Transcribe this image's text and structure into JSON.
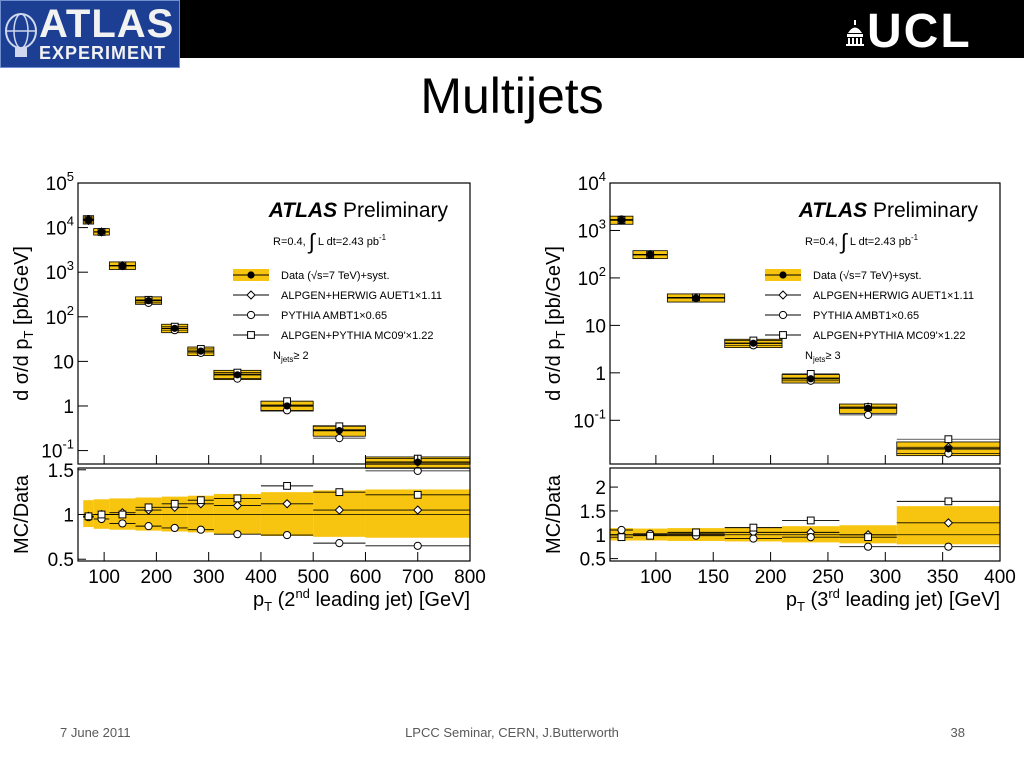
{
  "slide": {
    "title": "Multijets",
    "footer_date": "7 June 2011",
    "footer_center": "LPCC Seminar, CERN, J.Butterworth",
    "page_number": "38"
  },
  "logos": {
    "atlas": {
      "line1": "ATLAS",
      "line2": "EXPERIMENT"
    },
    "ucl": "UCL"
  },
  "colors": {
    "band": "#f7c510",
    "bandEdge": "#e0a800",
    "ink": "#000000"
  },
  "chart_data": [
    {
      "type": "scatter",
      "title": "ATLAS Preliminary",
      "title_bold": "ATLAS",
      "title_rest": "Preliminary",
      "ylabel": "d σ/d p_T [pb/GeV]",
      "xlabel": "p_T (2nd leading jet) [GeV]",
      "ratio_ylabel": "MC/Data",
      "log_y": true,
      "xlim": [
        50,
        800
      ],
      "ylim": [
        0.05,
        100000
      ],
      "ratio_ylim": [
        0.48,
        1.52
      ],
      "x_ticks": [
        100,
        200,
        300,
        400,
        500,
        600,
        700,
        800
      ],
      "y_ticks": [
        {
          "v": 0.1,
          "label": "10",
          "exp": "-1"
        },
        {
          "v": 1,
          "label": "1"
        },
        {
          "v": 10,
          "label": "10"
        },
        {
          "v": 100,
          "label": "10",
          "exp": "2"
        },
        {
          "v": 1000,
          "label": "10",
          "exp": "3"
        },
        {
          "v": 10000,
          "label": "10",
          "exp": "4"
        },
        {
          "v": 100000,
          "label": "10",
          "exp": "5"
        }
      ],
      "ratio_ticks": [
        {
          "v": 0.5,
          "label": "0.5"
        },
        {
          "v": 1,
          "label": "1"
        },
        {
          "v": 1.5,
          "label": "1.5"
        }
      ],
      "legend_position": "top-right",
      "annotations": [
        "R=0.4,",
        "L dt=2.43 pb",
        "-1",
        "N",
        "jets",
        "≥ 2"
      ],
      "legend": [
        {
          "name": "Data (√s=7 TeV)+syst.",
          "marker": "filled-circle-band"
        },
        {
          "name": "ALPGEN+HERWIG AUET1×1.11",
          "marker": "open-diamond"
        },
        {
          "name": "PYTHIA AMBT1×0.65",
          "marker": "open-circle"
        },
        {
          "name": "ALPGEN+PYTHIA MC09'×1.22",
          "marker": "open-square"
        }
      ],
      "bins": [
        {
          "lo": 60,
          "hi": 80,
          "data": 15000,
          "band_lo": 12000,
          "band_hi": 18500,
          "alpgen_herwig": 14500,
          "pythia": 15500,
          "alpgen_pythia": 15200,
          "r_band": [
            0.86,
            1.16
          ],
          "r_ah": 0.98,
          "r_py": 0.97,
          "r_ap": 0.98
        },
        {
          "lo": 80,
          "hi": 110,
          "data": 8000,
          "band_lo": 6800,
          "band_hi": 9500,
          "alpgen_herwig": 8000,
          "pythia": 8000,
          "alpgen_pythia": 8000,
          "r_band": [
            0.84,
            1.17
          ],
          "r_ah": 1.0,
          "r_py": 0.95,
          "r_ap": 1.0
        },
        {
          "lo": 110,
          "hi": 160,
          "data": 1400,
          "band_lo": 1150,
          "band_hi": 1700,
          "alpgen_herwig": 1400,
          "pythia": 1380,
          "alpgen_pythia": 1420,
          "r_band": [
            0.83,
            1.18
          ],
          "r_ah": 1.02,
          "r_py": 0.9,
          "r_ap": 1.0
        },
        {
          "lo": 160,
          "hi": 210,
          "data": 230,
          "band_lo": 190,
          "band_hi": 280,
          "alpgen_herwig": 230,
          "pythia": 205,
          "alpgen_pythia": 240,
          "r_band": [
            0.82,
            1.19
          ],
          "r_ah": 1.05,
          "r_py": 0.87,
          "r_ap": 1.08
        },
        {
          "lo": 210,
          "hi": 260,
          "data": 55,
          "band_lo": 44,
          "band_hi": 68,
          "alpgen_herwig": 55,
          "pythia": 50,
          "alpgen_pythia": 60,
          "r_band": [
            0.81,
            1.2
          ],
          "r_ah": 1.08,
          "r_py": 0.85,
          "r_ap": 1.12
        },
        {
          "lo": 260,
          "hi": 310,
          "data": 17,
          "band_lo": 13.5,
          "band_hi": 21,
          "alpgen_herwig": 17,
          "pythia": 15.5,
          "alpgen_pythia": 19,
          "r_band": [
            0.8,
            1.21
          ],
          "r_ah": 1.12,
          "r_py": 0.83,
          "r_ap": 1.16
        },
        {
          "lo": 310,
          "hi": 400,
          "data": 5,
          "band_lo": 3.9,
          "band_hi": 6.3,
          "alpgen_herwig": 5.2,
          "pythia": 4.1,
          "alpgen_pythia": 5.6,
          "r_band": [
            0.78,
            1.23
          ],
          "r_ah": 1.1,
          "r_py": 0.78,
          "r_ap": 1.18
        },
        {
          "lo": 400,
          "hi": 500,
          "data": 1.0,
          "band_lo": 0.77,
          "band_hi": 1.28,
          "alpgen_herwig": 1.05,
          "pythia": 0.8,
          "alpgen_pythia": 1.28,
          "r_band": [
            0.76,
            1.25
          ],
          "r_ah": 1.12,
          "r_py": 0.77,
          "r_ap": 1.32
        },
        {
          "lo": 500,
          "hi": 600,
          "data": 0.28,
          "band_lo": 0.21,
          "band_hi": 0.36,
          "alpgen_herwig": 0.3,
          "pythia": 0.19,
          "alpgen_pythia": 0.35,
          "r_band": [
            0.75,
            1.27
          ],
          "r_ah": 1.05,
          "r_py": 0.68,
          "r_ap": 1.25
        },
        {
          "lo": 600,
          "hi": 800,
          "data": 0.055,
          "band_lo": 0.04,
          "band_hi": 0.072,
          "alpgen_herwig": 0.056,
          "pythia": 0.035,
          "alpgen_pythia": 0.066,
          "r_band": [
            0.74,
            1.28
          ],
          "r_ah": 1.05,
          "r_py": 0.65,
          "r_ap": 1.22
        }
      ]
    },
    {
      "type": "scatter",
      "title": "ATLAS Preliminary",
      "title_bold": "ATLAS",
      "title_rest": "Preliminary",
      "ylabel": "d σ/d p_T [pb/GeV]",
      "xlabel": "p_T (3rd leading jet) [GeV]",
      "ratio_ylabel": "MC/Data",
      "log_y": true,
      "xlim": [
        60,
        400
      ],
      "ylim": [
        0.012,
        10000
      ],
      "ratio_ylim": [
        0.45,
        2.4
      ],
      "x_ticks": [
        100,
        150,
        200,
        250,
        300,
        350,
        400
      ],
      "y_ticks": [
        {
          "v": 0.1,
          "label": "10",
          "exp": "-1"
        },
        {
          "v": 1,
          "label": "1"
        },
        {
          "v": 10,
          "label": "10"
        },
        {
          "v": 100,
          "label": "10",
          "exp": "2"
        },
        {
          "v": 1000,
          "label": "10",
          "exp": "3"
        },
        {
          "v": 10000,
          "label": "10",
          "exp": "4"
        }
      ],
      "ratio_ticks": [
        {
          "v": 0.5,
          "label": "0.5"
        },
        {
          "v": 1,
          "label": "1"
        },
        {
          "v": 1.5,
          "label": "1.5"
        },
        {
          "v": 2,
          "label": "2"
        }
      ],
      "legend_position": "top-right",
      "annotations": [
        "R=0.4,",
        "L dt=2.43 pb",
        "-1",
        "N",
        "jets",
        "≥ 3"
      ],
      "legend": [
        {
          "name": "Data (√s=7 TeV)+syst.",
          "marker": "filled-circle-band"
        },
        {
          "name": "ALPGEN+HERWIG AUET1×1.11",
          "marker": "open-diamond"
        },
        {
          "name": "PYTHIA AMBT1×0.65",
          "marker": "open-circle"
        },
        {
          "name": "ALPGEN+PYTHIA MC09'×1.22",
          "marker": "open-square"
        }
      ],
      "bins": [
        {
          "lo": 60,
          "hi": 80,
          "data": 1650,
          "band_lo": 1350,
          "band_hi": 2000,
          "alpgen_herwig": 1650,
          "pythia": 1700,
          "alpgen_pythia": 1650,
          "r_band": [
            0.88,
            1.14
          ],
          "r_ah": 1.0,
          "r_py": 1.1,
          "r_ap": 0.95
        },
        {
          "lo": 80,
          "hi": 110,
          "data": 310,
          "band_lo": 255,
          "band_hi": 375,
          "alpgen_herwig": 310,
          "pythia": 305,
          "alpgen_pythia": 310,
          "r_band": [
            0.88,
            1.13
          ],
          "r_ah": 1.0,
          "r_py": 1.02,
          "r_ap": 0.98
        },
        {
          "lo": 110,
          "hi": 160,
          "data": 38,
          "band_lo": 31,
          "band_hi": 46,
          "alpgen_herwig": 38,
          "pythia": 38,
          "alpgen_pythia": 39,
          "r_band": [
            0.87,
            1.14
          ],
          "r_ah": 1.02,
          "r_py": 0.98,
          "r_ap": 1.05
        },
        {
          "lo": 160,
          "hi": 210,
          "data": 4.2,
          "band_lo": 3.4,
          "band_hi": 5.1,
          "alpgen_herwig": 4.2,
          "pythia": 3.8,
          "alpgen_pythia": 4.8,
          "r_band": [
            0.86,
            1.16
          ],
          "r_ah": 1.05,
          "r_py": 0.92,
          "r_ap": 1.15
        },
        {
          "lo": 210,
          "hi": 260,
          "data": 0.75,
          "band_lo": 0.61,
          "band_hi": 0.92,
          "alpgen_herwig": 0.78,
          "pythia": 0.68,
          "alpgen_pythia": 0.95,
          "r_band": [
            0.84,
            1.18
          ],
          "r_ah": 1.05,
          "r_py": 0.95,
          "r_ap": 1.3
        },
        {
          "lo": 260,
          "hi": 310,
          "data": 0.18,
          "band_lo": 0.14,
          "band_hi": 0.22,
          "alpgen_herwig": 0.19,
          "pythia": 0.13,
          "alpgen_pythia": 0.19,
          "r_band": [
            0.82,
            1.2
          ],
          "r_ah": 1.0,
          "r_py": 0.75,
          "r_ap": 0.95
        },
        {
          "lo": 310,
          "hi": 400,
          "data": 0.025,
          "band_lo": 0.018,
          "band_hi": 0.035,
          "alpgen_herwig": 0.027,
          "pythia": 0.02,
          "alpgen_pythia": 0.04,
          "r_band": [
            0.8,
            1.6
          ],
          "r_ah": 1.25,
          "r_py": 0.75,
          "r_ap": 1.7
        }
      ]
    }
  ]
}
